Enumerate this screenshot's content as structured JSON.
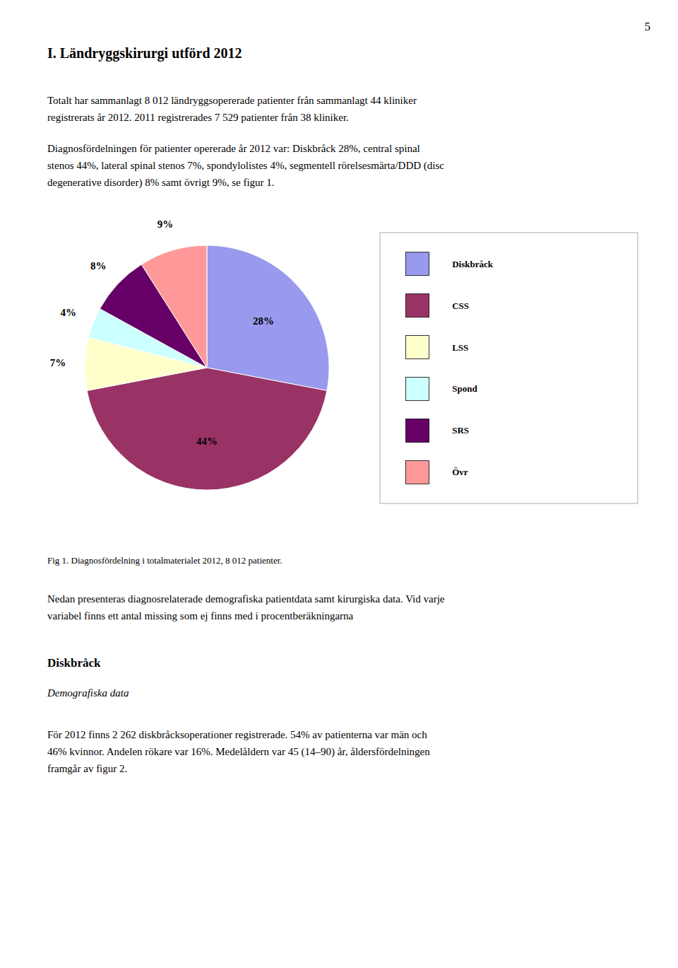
{
  "page": {
    "page_number": "5",
    "title": "I. Ländryggskirurgi utförd 2012",
    "paragraphs": [
      "Totalt har sammanlagt 8 012 ländryggsopererade patienter från sammanlagt 44 kliniker\nregistrerats år 2012. 2011 registrerades 7 529 patienter från 38 kliniker.",
      "Diagnosfördelningen för patienter opererade år 2012 var: Diskbråck 28%, central spinal\nstenos 44%, lateral spinal stenos 7%, spondylolistes 4%, segmentell rörelsesmärta/DDD (disc\ndegenerative disorder) 8% samt övrigt 9%, se figur 1.",
      "Nedan presenteras diagnosrelaterade demografiska patientdata samt kirurgiska data. Vid varje\nvariabel finns ett antal missing som ej finns med i procentberäkningarna"
    ],
    "section_title": "Diskbråck",
    "section_subtitle": "Demografiska data",
    "section_paragraph": "För 2012 finns 2 262 diskbråcksoperationer registrerade. 54% av patienterna var män och\n46% kvinnor. Andelen rökare var 16%. Medelåldern var 45 (14–90) år, åldersfördelningen\nframgår av figur 2."
  },
  "chart_data": {
    "type": "pie",
    "caption": "Fig 1. Diagnosfördelning i totalmaterialet 2012, 8 012 patienter.",
    "categories": [
      "Diskbråck",
      "CSS",
      "LSS",
      "Spond",
      "SRS",
      "Övr"
    ],
    "values": [
      28,
      44,
      7,
      4,
      8,
      9
    ],
    "value_labels": [
      "28%",
      "44%",
      "7%",
      "4%",
      "8%",
      "9%"
    ],
    "colors": [
      "#9999ee",
      "#993366",
      "#ffffcc",
      "#ccffff",
      "#660066",
      "#ff9999"
    ],
    "data_labels": true,
    "legend": "right"
  }
}
